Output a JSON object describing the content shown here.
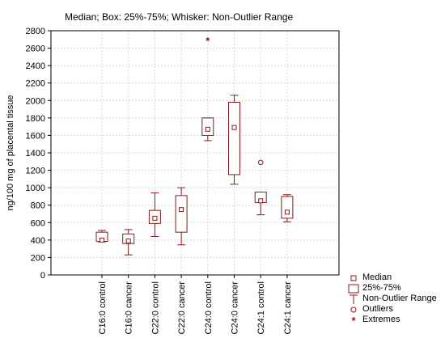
{
  "title": "Median; Box: 25%-75%; Whisker: Non-Outlier Range",
  "chart_data": {
    "type": "box",
    "title": "Median; Box: 25%-75%; Whisker: Non-Outlier Range",
    "xlabel": "",
    "ylabel": "ng/100 mg of placental tissue",
    "ylim": [
      0,
      2800
    ],
    "yticks": [
      0,
      200,
      400,
      600,
      800,
      1000,
      1200,
      1400,
      1600,
      1800,
      2000,
      2200,
      2400,
      2600,
      2800
    ],
    "grid": true,
    "color": "#8b1a1a",
    "categories": [
      "C16:0 control",
      "C16:0 cancer",
      "C22:0 control",
      "C22:0 cancer",
      "C24:0 control",
      "C24:0 cancer",
      "C24:1 control",
      "C24:1 cancer"
    ],
    "boxes": [
      {
        "median": 400,
        "q1": 385,
        "q3": 490,
        "whisker_low": 380,
        "whisker_high": 510,
        "outliers": [],
        "extremes": []
      },
      {
        "median": 390,
        "q1": 360,
        "q3": 470,
        "whisker_low": 230,
        "whisker_high": 520,
        "outliers": [],
        "extremes": []
      },
      {
        "median": 650,
        "q1": 590,
        "q3": 740,
        "whisker_low": 440,
        "whisker_high": 940,
        "outliers": [],
        "extremes": []
      },
      {
        "median": 750,
        "q1": 490,
        "q3": 910,
        "whisker_low": 345,
        "whisker_high": 1000,
        "outliers": [],
        "extremes": []
      },
      {
        "median": 1670,
        "q1": 1600,
        "q3": 1800,
        "whisker_low": 1540,
        "whisker_high": 1800,
        "outliers": [],
        "extremes": [
          2690
        ]
      },
      {
        "median": 1690,
        "q1": 1150,
        "q3": 1980,
        "whisker_low": 1040,
        "whisker_high": 2060,
        "outliers": [],
        "extremes": []
      },
      {
        "median": 850,
        "q1": 830,
        "q3": 950,
        "whisker_low": 690,
        "whisker_high": 950,
        "outliers": [
          1290
        ],
        "extremes": []
      },
      {
        "median": 720,
        "q1": 650,
        "q3": 900,
        "whisker_low": 610,
        "whisker_high": 920,
        "outliers": [],
        "extremes": []
      }
    ],
    "legend": {
      "position": "bottom-right",
      "entries": [
        {
          "symbol": "median-square",
          "label": "Median"
        },
        {
          "symbol": "box",
          "label": "25%-75%"
        },
        {
          "symbol": "whisker",
          "label": "Non-Outlier Range"
        },
        {
          "symbol": "circle",
          "label": "Outliers"
        },
        {
          "symbol": "asterisk",
          "label": "Extremes"
        }
      ]
    }
  }
}
